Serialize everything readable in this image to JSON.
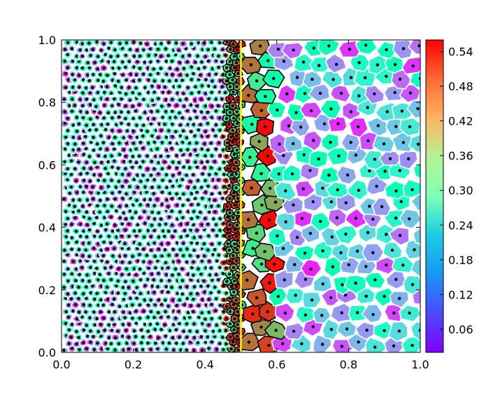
{
  "chart_data": {
    "type": "heatmap",
    "title": "",
    "xlabel": "",
    "ylabel": "",
    "xlim": [
      0.0,
      1.0
    ],
    "ylim": [
      0.0,
      1.0
    ],
    "x_ticks": [
      "0.0",
      "0.2",
      "0.4",
      "0.6",
      "0.8",
      "1.0"
    ],
    "y_ticks": [
      "0.0",
      "0.2",
      "0.4",
      "0.6",
      "0.8",
      "1.0"
    ],
    "colorbar": {
      "colormap": "rainbow",
      "range": [
        0.02,
        0.56
      ],
      "ticks": [
        "0.06",
        "0.12",
        "0.18",
        "0.24",
        "0.30",
        "0.36",
        "0.42",
        "0.48",
        "0.54"
      ],
      "tick_values": [
        0.06,
        0.12,
        0.18,
        0.24,
        0.3,
        0.36,
        0.42,
        0.48,
        0.54
      ]
    },
    "interface_x": 0.5,
    "interface_color": "#ffff00",
    "cells": {
      "left_region": {
        "x_range": [
          0.0,
          0.5
        ],
        "cell_size": 0.02,
        "typical_value_range": [
          0.05,
          0.32
        ],
        "cell_edge_color": "#ffffff",
        "seed_color": "#000000"
      },
      "right_region": {
        "x_range": [
          0.5,
          1.0
        ],
        "cell_size": 0.05,
        "typical_value_range": [
          0.04,
          0.3
        ],
        "cell_edge_color": "#ffffff",
        "seed_color": "#000000"
      },
      "interface_band": {
        "x_range": [
          0.45,
          0.6
        ],
        "typical_value_range": [
          0.3,
          0.56
        ],
        "cell_edge_color": "#000000"
      }
    }
  }
}
